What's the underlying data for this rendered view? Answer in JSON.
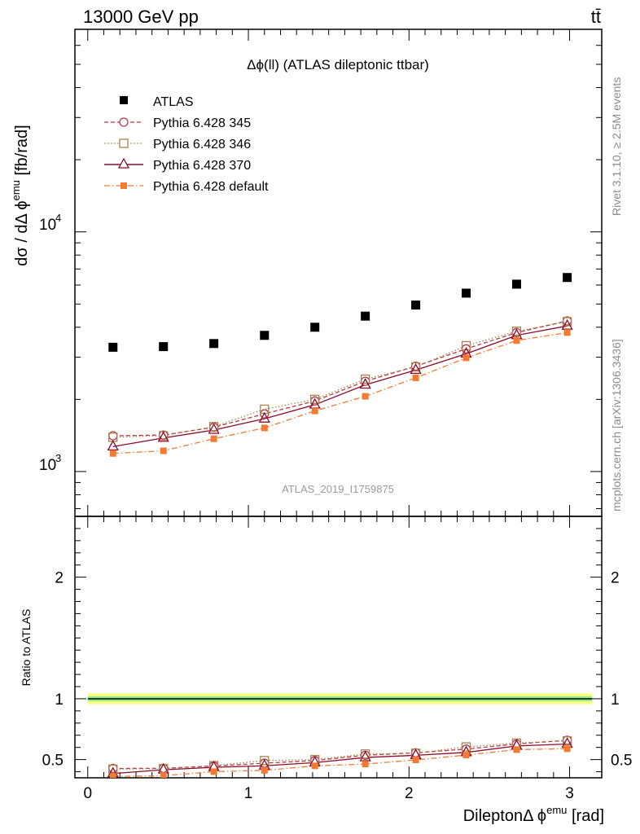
{
  "header": {
    "energy_label": "13000 GeV pp",
    "process_label": "tt̄",
    "plot_title": "Δϕ(ll) (ATLAS dileptonic ttbar)",
    "analysis_id": "ATLAS_2019_I1759875",
    "rivet_note": "Rivet 3.1.10, ≥ 2.5M events",
    "source_note": "mcplots.cern.ch [arXiv:1306.3436]"
  },
  "colors": {
    "atlas": "#000000",
    "pythia_345": "#b03a48",
    "pythia_346": "#a88440",
    "pythia_370": "#8b0a2a",
    "pythia_default": "#f47a30",
    "band_inner": "#90ee90",
    "band_outer": "#ffff80"
  },
  "chart_data": [
    {
      "type": "scatter",
      "panel": "main",
      "ylabel": "dσ / dΔϕ^emu [fb/rad]",
      "yscale": "log",
      "ylim": [
        650,
        70000
      ],
      "xlim": [
        -0.08,
        3.2
      ],
      "y_tick_labels": [
        "10^3",
        "10^4"
      ],
      "x": [
        0.157,
        0.471,
        0.785,
        1.1,
        1.414,
        1.728,
        2.042,
        2.356,
        2.67,
        2.985
      ],
      "series": [
        {
          "name": "ATLAS",
          "marker": "square-filled",
          "line": "none",
          "values": [
            3300,
            3320,
            3420,
            3700,
            4000,
            4450,
            4950,
            5550,
            6050,
            6450
          ]
        },
        {
          "name": "Pythia 6.428 345",
          "marker": "circle-open",
          "line": "dashed",
          "values": [
            1410,
            1420,
            1530,
            1740,
            1970,
            2380,
            2750,
            3250,
            3800,
            4250
          ]
        },
        {
          "name": "Pythia 6.428 346",
          "marker": "square-open",
          "line": "dotted",
          "values": [
            1390,
            1410,
            1540,
            1820,
            2000,
            2430,
            2730,
            3350,
            3850,
            4220
          ]
        },
        {
          "name": "Pythia 6.428 370",
          "marker": "triangle-open",
          "line": "solid",
          "values": [
            1270,
            1380,
            1490,
            1660,
            1900,
            2300,
            2650,
            3100,
            3700,
            4050
          ]
        },
        {
          "name": "Pythia 6.428 default",
          "marker": "square-filled-small",
          "line": "dashdot",
          "values": [
            1190,
            1220,
            1370,
            1520,
            1790,
            2060,
            2460,
            2980,
            3520,
            3800
          ]
        }
      ]
    },
    {
      "type": "scatter",
      "panel": "ratio",
      "ylabel": "Ratio to ATLAS",
      "xlabel": "Dilepton Δϕ^emu [rad]",
      "ylim": [
        0.35,
        2.5
      ],
      "xlim": [
        -0.08,
        3.2
      ],
      "x_tick_labels": [
        "0",
        "1",
        "2",
        "3"
      ],
      "y_tick_labels": [
        "0.5",
        "1",
        "2"
      ],
      "reference_line": 1.0,
      "band_inner_halfwidth": 0.02,
      "band_outer_halfwidth": 0.045,
      "series": [
        {
          "name": "Pythia 6.428 345",
          "values": [
            0.427,
            0.428,
            0.447,
            0.47,
            0.492,
            0.535,
            0.556,
            0.586,
            0.628,
            0.659
          ]
        },
        {
          "name": "Pythia 6.428 346",
          "values": [
            0.421,
            0.425,
            0.45,
            0.492,
            0.5,
            0.546,
            0.552,
            0.604,
            0.636,
            0.654
          ]
        },
        {
          "name": "Pythia 6.428 370",
          "values": [
            0.385,
            0.416,
            0.436,
            0.449,
            0.475,
            0.517,
            0.535,
            0.559,
            0.612,
            0.628
          ]
        },
        {
          "name": "Pythia 6.428 default",
          "values": [
            0.361,
            0.367,
            0.401,
            0.411,
            0.448,
            0.463,
            0.497,
            0.537,
            0.582,
            0.589
          ]
        }
      ]
    }
  ]
}
